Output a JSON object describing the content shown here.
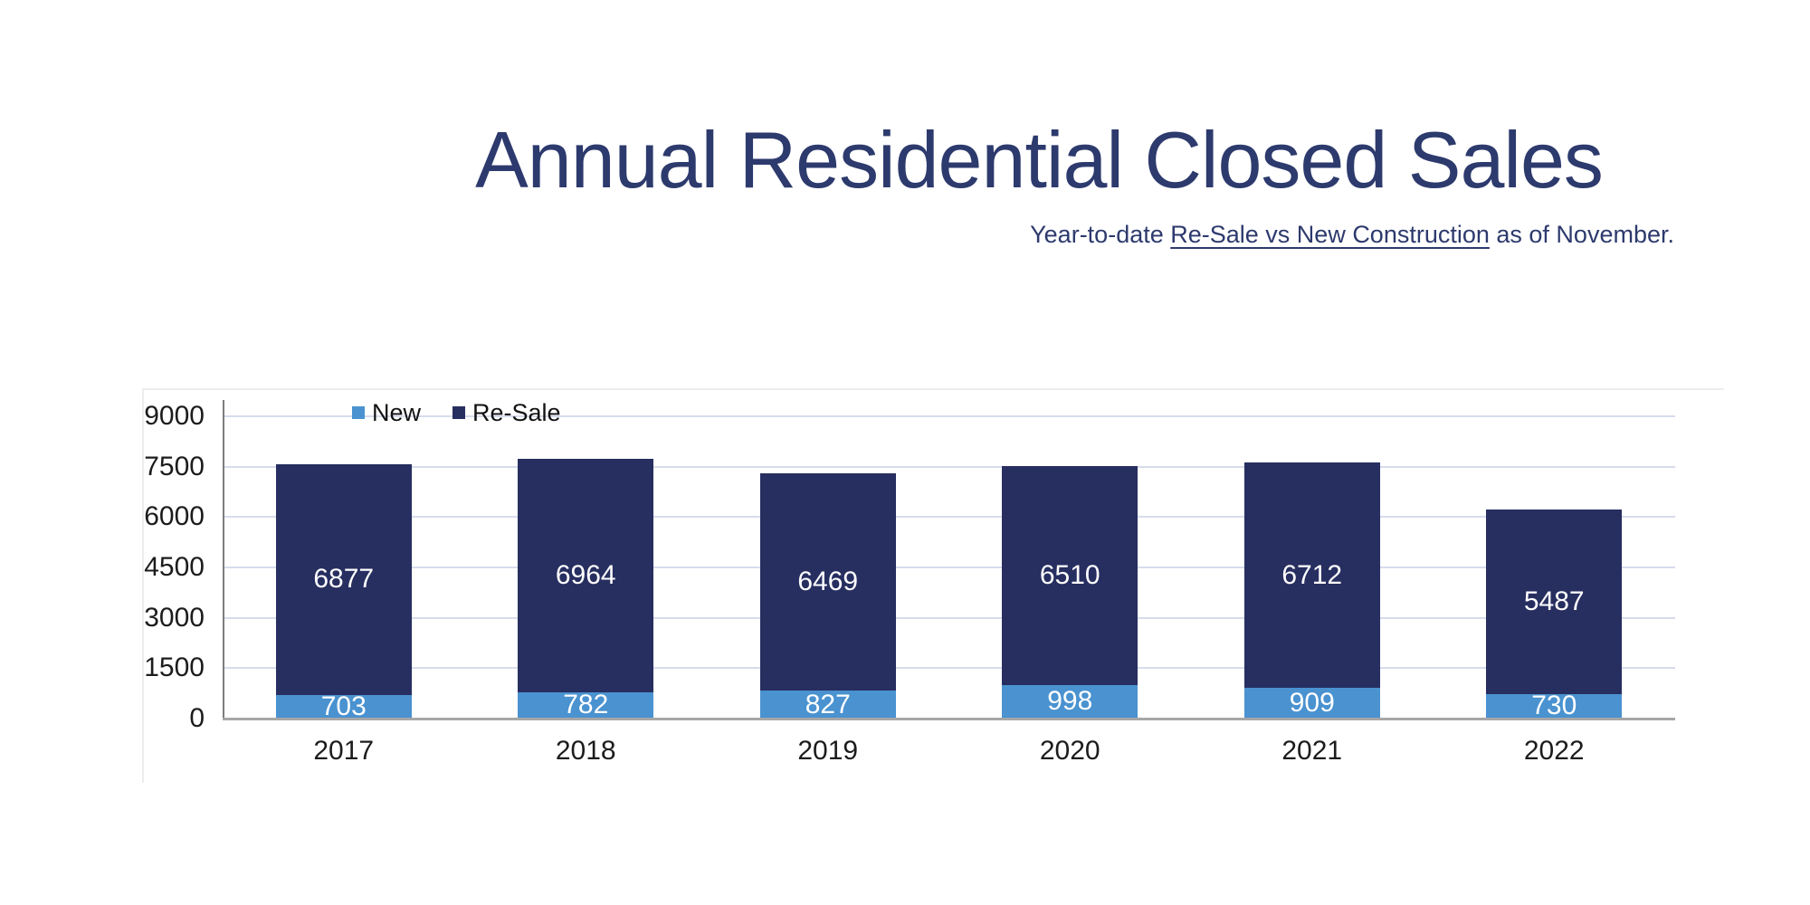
{
  "header": {
    "title": "Annual Residential Closed Sales",
    "subtitle_prefix": "Year-to-date ",
    "subtitle_underlined": "Re-Sale vs New Construction",
    "subtitle_suffix": " as of November.",
    "title_color": "#2d3a6d"
  },
  "chart_data": {
    "type": "bar",
    "stacked": true,
    "title": "Annual Residential Closed Sales",
    "subtitle": "Year-to-date Re-Sale vs New Construction as of November.",
    "categories": [
      "2017",
      "2018",
      "2019",
      "2020",
      "2021",
      "2022"
    ],
    "series": [
      {
        "name": "New",
        "color": "#4a92d0",
        "values": [
          703,
          782,
          827,
          998,
          909,
          730
        ]
      },
      {
        "name": "Re-Sale",
        "color": "#272e60",
        "values": [
          6877,
          6964,
          6469,
          6510,
          6712,
          5487
        ]
      }
    ],
    "xlabel": "",
    "ylabel": "",
    "ylim": [
      0,
      9000
    ],
    "yticks": [
      0,
      1500,
      3000,
      4500,
      6000,
      7500,
      9000
    ],
    "grid": "horizontal",
    "legend_position": "top-left-inside",
    "value_label_style": "white text centered inside each segment",
    "colors": {
      "gridline": "#d7dcec",
      "y_axis_line": "#7d7d7d",
      "x_axis_line": "#a7a7a7",
      "tick_text": "#1c1c1c",
      "title_text": "#2d3a6d"
    }
  }
}
